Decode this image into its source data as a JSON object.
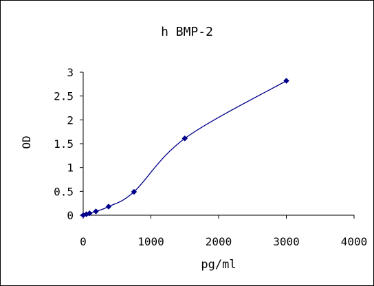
{
  "chart_data": {
    "type": "scatter",
    "title": "h BMP-2",
    "xlabel": "pg/ml",
    "ylabel": "OD",
    "xlim": [
      0,
      4000
    ],
    "ylim": [
      0,
      3
    ],
    "x_ticks": [
      "0",
      "1000",
      "2000",
      "3000",
      "4000"
    ],
    "y_ticks": [
      "0",
      "0.5",
      "1",
      "1.5",
      "2",
      "2.5",
      "3"
    ],
    "grid": false,
    "legend": "none",
    "line_style": "smoothed line with diamond markers",
    "series": [
      {
        "color": "#00008b",
        "points": [
          {
            "x": 0,
            "y": 0.0
          },
          {
            "x": 46.9,
            "y": 0.02
          },
          {
            "x": 93.8,
            "y": 0.04
          },
          {
            "x": 187.5,
            "y": 0.08
          },
          {
            "x": 375,
            "y": 0.18
          },
          {
            "x": 750,
            "y": 0.49
          },
          {
            "x": 1500,
            "y": 1.61
          },
          {
            "x": 3000,
            "y": 2.82
          }
        ]
      }
    ]
  }
}
